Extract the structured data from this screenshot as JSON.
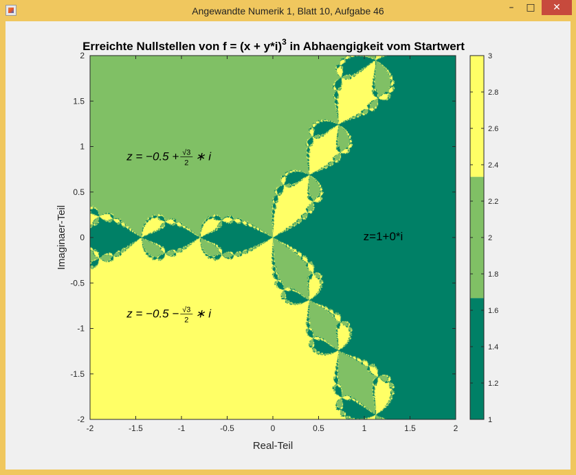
{
  "window": {
    "title": "Angewandte Numerik 1, Blatt 10, Aufgabe 46",
    "minimize": "–",
    "maximize": "□",
    "close": "✕"
  },
  "colors": {
    "root_1": "#008066",
    "root_2": "#80c065",
    "root_3": "#ffff66",
    "window_frame": "#f0c75e",
    "close_button": "#c74a3d"
  },
  "icons": [
    "matlab-figure-icon",
    "minimize-icon",
    "maximize-icon",
    "close-icon"
  ],
  "chart_data": {
    "type": "heatmap",
    "title_main": "Erreichte Nullstellen von f = (x + y*i)",
    "title_exponent": "3",
    "title_rest": " in Abhaengigkeit vom Startwert",
    "xlabel": "Real-Teil",
    "ylabel": "Imaginaer-Teil",
    "xlim": [
      -2,
      2
    ],
    "ylim": [
      -2,
      2
    ],
    "xticks": [
      "-2",
      "-1.5",
      "-1",
      "-0.5",
      "0",
      "0.5",
      "1",
      "1.5",
      "2"
    ],
    "yticks": [
      "2",
      "1.5",
      "1",
      "0.5",
      "0",
      "-0.5",
      "-1",
      "-1.5",
      "-2"
    ],
    "colorbar": {
      "range": [
        1,
        3
      ],
      "ticks": [
        "3",
        "2.8",
        "2.6",
        "2.4",
        "2.2",
        "2",
        "1.8",
        "1.6",
        "1.4",
        "1.2",
        "1"
      ]
    },
    "regions": [
      {
        "root": "z=1+0*i",
        "value": 1,
        "label": "z=1+0*i"
      },
      {
        "root": "z = -0.5 + √3/2 * i",
        "value": 2,
        "label": "z = −0.5 + √3/2 ∗ i"
      },
      {
        "root": "z = -0.5 - √3/2 * i",
        "value": 3,
        "label": "z = −0.5 − √3/2 ∗ i"
      }
    ],
    "annotations": {
      "upper_prefix": "z = −0.5 + ",
      "lower_prefix": "z = −0.5 − ",
      "sqrt3": "√3",
      "two": "2",
      "times_i": "∗ i",
      "right": "z=1+0*i"
    }
  }
}
